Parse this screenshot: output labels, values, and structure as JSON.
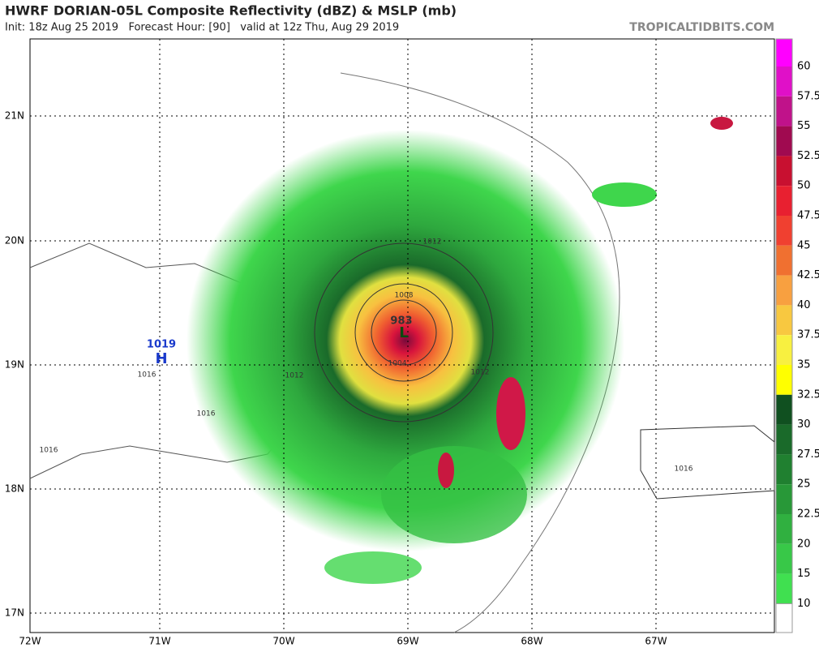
{
  "header": {
    "title": "HWRF DORIAN-05L Composite Reflectivity (dBZ) & MSLP (mb)",
    "subtitle": "Init: 18z Aug 25 2019   Forecast Hour: [90]   valid at 12z Thu, Aug 29 2019",
    "source": "TROPICALTIDBITS.COM"
  },
  "map": {
    "lon_labels": [
      "72W",
      "71W",
      "70W",
      "69W",
      "68W",
      "67W"
    ],
    "lat_labels": [
      "21N",
      "20N",
      "19N",
      "18N",
      "17N"
    ],
    "pressure_labels": [
      "1019",
      "H",
      "1016",
      "1016",
      "1016",
      "1012",
      "1012",
      "1008",
      "983",
      "L",
      "1004",
      "1012",
      "1016"
    ]
  },
  "colorbar": {
    "labels": [
      60,
      57.5,
      55,
      52.5,
      50,
      47.5,
      45,
      42.5,
      40,
      37.5,
      35,
      32.5,
      30,
      27.5,
      25,
      22.5,
      20,
      15,
      10
    ]
  }
}
